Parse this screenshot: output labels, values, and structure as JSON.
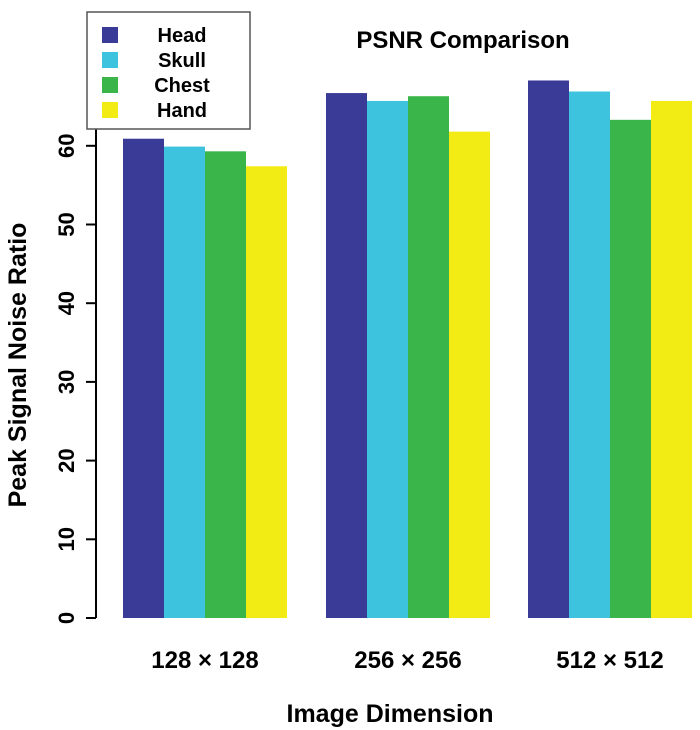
{
  "chart_data": {
    "type": "bar",
    "title": "PSNR Comparison",
    "xlabel": "Image Dimension",
    "ylabel": "Peak Signal Noise Ratio",
    "categories": [
      "128 × 128",
      "256 × 256",
      "512 × 512"
    ],
    "ylim": [
      0,
      68
    ],
    "yticks": [
      0,
      10,
      20,
      30,
      40,
      50,
      60
    ],
    "series": [
      {
        "name": "Head",
        "color": "#3a3b96",
        "values": [
          60.9,
          66.7,
          68.3
        ]
      },
      {
        "name": "Skull",
        "color": "#3dc3de",
        "values": [
          59.9,
          65.7,
          66.9
        ]
      },
      {
        "name": "Chest",
        "color": "#39b54a",
        "values": [
          59.3,
          66.3,
          63.3
        ]
      },
      {
        "name": "Hand",
        "color": "#f2ec14",
        "values": [
          57.4,
          61.8,
          65.7
        ]
      }
    ],
    "legend_position": "top-left",
    "grid": false
  }
}
